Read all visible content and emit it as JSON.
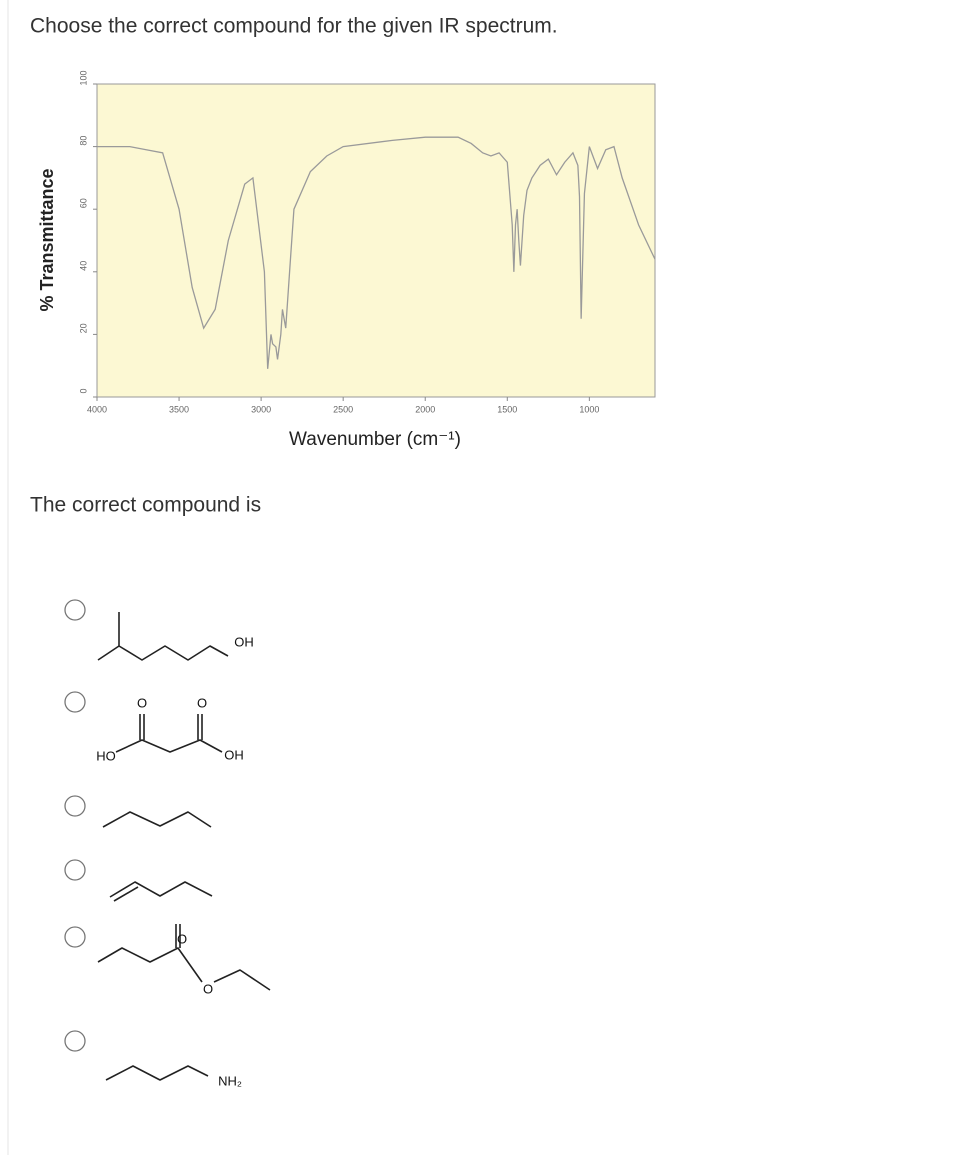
{
  "question": "Choose the correct compound for the given IR spectrum.",
  "chart_data": {
    "type": "line",
    "xlabel": "Wavenumber (cm⁻¹)",
    "ylabel": "% Transmittance",
    "x": [
      4000,
      3800,
      3700,
      3600,
      3500,
      3420,
      3350,
      3280,
      3200,
      3100,
      3050,
      2980,
      2960,
      2940,
      2930,
      2910,
      2900,
      2880,
      2870,
      2850,
      2820,
      2800,
      2700,
      2600,
      2500,
      2200,
      2000,
      1800,
      1720,
      1650,
      1600,
      1550,
      1500,
      1470,
      1460,
      1450,
      1440,
      1430,
      1420,
      1400,
      1380,
      1350,
      1300,
      1250,
      1200,
      1150,
      1100,
      1070,
      1060,
      1050,
      1040,
      1030,
      1000,
      950,
      900,
      850,
      800,
      700,
      600
    ],
    "series": [
      {
        "color": "#9a9a9a",
        "values": [
          80,
          80,
          79,
          78,
          60,
          35,
          22,
          28,
          50,
          68,
          70,
          40,
          9,
          20,
          17,
          16,
          12,
          20,
          28,
          22,
          45,
          60,
          72,
          77,
          80,
          82,
          83,
          83,
          81,
          78,
          77,
          78,
          75,
          55,
          40,
          55,
          60,
          50,
          42,
          58,
          66,
          70,
          74,
          76,
          71,
          75,
          78,
          74,
          64,
          25,
          45,
          65,
          80,
          73,
          79,
          80,
          70,
          55,
          44
        ]
      }
    ],
    "xlim": [
      4000,
      600
    ],
    "ylim": [
      0,
      100
    ],
    "xticks": [
      4000,
      3500,
      3000,
      2500,
      2000,
      1500,
      1000
    ],
    "yticks": [
      0,
      20,
      40,
      60,
      80,
      100
    ],
    "plot_background": "#fcf8d3"
  },
  "prompt": "The correct compound is",
  "options": [
    {
      "atoms": [
        "OH"
      ]
    },
    {
      "atoms": [
        "O",
        "O",
        "HO",
        "OH"
      ]
    },
    {
      "atoms": []
    },
    {
      "atoms": []
    },
    {
      "atoms": [
        "O",
        "O"
      ]
    },
    {
      "atoms": [
        "NH₂"
      ]
    }
  ]
}
